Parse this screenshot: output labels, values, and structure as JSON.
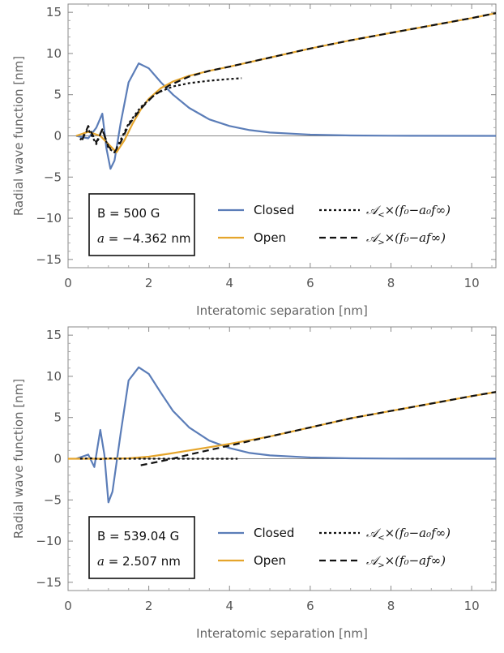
{
  "chart_data": [
    {
      "type": "line",
      "xlabel": "Interatomic separation [nm]",
      "ylabel": "Radial wave function [nm]",
      "xlim": [
        0,
        10.6
      ],
      "ylim": [
        -16,
        16
      ],
      "xticks": [
        0,
        2,
        4,
        6,
        8,
        10
      ],
      "yticks": [
        -15,
        -10,
        -5,
        0,
        5,
        10,
        15
      ],
      "x_tick_labels": [
        "0",
        "2",
        "4",
        "6",
        "8",
        "10"
      ],
      "y_tick_labels": [
        "−15",
        "−10",
        "−5",
        "0",
        "5",
        "10",
        "15"
      ],
      "annotation": {
        "line1": "B = 500 G",
        "a_symbol": "a",
        "a_value": " = −4.362 nm"
      },
      "legend": {
        "closed": "Closed",
        "open": "Open",
        "dotted_label": {
          "symbol": "𝒜",
          "sub": "<",
          "expr": "×(f₀−a₀f∞)"
        },
        "dashed_label": {
          "symbol": "𝒜",
          "sub": ">",
          "expr": "×(f₀−af∞)"
        }
      },
      "series": [
        {
          "name": "Closed",
          "color": "#5b7db8",
          "x": [
            0.2,
            0.5,
            0.7,
            0.85,
            0.95,
            1.05,
            1.15,
            1.3,
            1.5,
            1.75,
            2.0,
            2.3,
            2.6,
            3.0,
            3.5,
            4.0,
            4.5,
            5.0,
            6.0,
            7.0,
            8.0,
            10.6
          ],
          "y": [
            0.0,
            -0.3,
            1.0,
            2.7,
            -1.5,
            -4.0,
            -3.0,
            1.5,
            6.5,
            8.8,
            8.2,
            6.5,
            5.0,
            3.4,
            2.0,
            1.2,
            0.7,
            0.4,
            0.15,
            0.05,
            0.02,
            0.0
          ]
        },
        {
          "name": "Open",
          "color": "#e5a52c",
          "x": [
            0.2,
            0.5,
            0.8,
            1.0,
            1.2,
            1.4,
            1.6,
            1.8,
            2.0,
            2.3,
            2.6,
            3.0,
            3.5,
            4.0,
            5.0,
            6.0,
            7.0,
            8.0,
            9.0,
            10.0,
            10.6
          ],
          "y": [
            0.0,
            0.5,
            0.0,
            -1.0,
            -2.0,
            -0.5,
            1.5,
            3.2,
            4.5,
            5.8,
            6.6,
            7.3,
            7.9,
            8.4,
            9.5,
            10.6,
            11.6,
            12.5,
            13.4,
            14.3,
            14.9
          ]
        },
        {
          "name": "Dotted asymptote",
          "color": "#111111",
          "x": [
            0.3,
            0.5,
            0.7,
            0.85,
            1.0,
            1.15,
            1.3,
            1.5,
            1.8,
            2.2,
            2.6,
            3.0,
            3.5,
            4.0,
            4.3
          ],
          "y": [
            -0.5,
            0.8,
            -1.0,
            0.8,
            -1.5,
            -2.0,
            -0.5,
            1.5,
            3.5,
            5.2,
            6.0,
            6.4,
            6.7,
            6.9,
            7.0
          ]
        },
        {
          "name": "Dashed asymptote",
          "color": "#111111",
          "x": [
            0.35,
            0.5,
            0.7,
            0.85,
            1.0,
            1.15,
            1.3,
            1.5,
            1.8,
            2.1,
            2.5,
            3.0,
            3.5,
            4.0,
            5.0,
            6.0,
            7.0,
            8.0,
            9.0,
            10.0,
            10.6
          ],
          "y": [
            -0.5,
            1.2,
            -0.8,
            0.8,
            -1.3,
            -2.0,
            -0.8,
            1.3,
            3.3,
            4.8,
            6.1,
            7.2,
            7.9,
            8.4,
            9.5,
            10.6,
            11.6,
            12.5,
            13.4,
            14.3,
            14.9
          ]
        }
      ]
    },
    {
      "type": "line",
      "xlabel": "Interatomic separation [nm]",
      "ylabel": "Radial wave function [nm]",
      "xlim": [
        0,
        10.6
      ],
      "ylim": [
        -16,
        16
      ],
      "xticks": [
        0,
        2,
        4,
        6,
        8,
        10
      ],
      "yticks": [
        -15,
        -10,
        -5,
        0,
        5,
        10,
        15
      ],
      "x_tick_labels": [
        "0",
        "2",
        "4",
        "6",
        "8",
        "10"
      ],
      "y_tick_labels": [
        "−15",
        "−10",
        "−5",
        "0",
        "5",
        "10",
        "15"
      ],
      "annotation": {
        "line1": "B = 539.04 G",
        "a_symbol": "a",
        "a_value": " = 2.507 nm"
      },
      "legend": {
        "closed": "Closed",
        "open": "Open",
        "dotted_label": {
          "symbol": "𝒜",
          "sub": "<",
          "expr": "×(f₀−a₀f∞)"
        },
        "dashed_label": {
          "symbol": "𝒜",
          "sub": ">",
          "expr": "×(f₀−af∞)"
        }
      },
      "series": [
        {
          "name": "Closed",
          "color": "#5b7db8",
          "x": [
            0.2,
            0.5,
            0.65,
            0.8,
            0.9,
            1.0,
            1.1,
            1.3,
            1.5,
            1.75,
            2.0,
            2.3,
            2.6,
            3.0,
            3.5,
            4.0,
            4.5,
            5.0,
            6.0,
            7.0,
            8.0,
            10.6
          ],
          "y": [
            0.0,
            0.5,
            -1.0,
            3.5,
            0.5,
            -5.3,
            -4.0,
            3.0,
            9.5,
            11.1,
            10.3,
            8.0,
            5.8,
            3.8,
            2.2,
            1.3,
            0.7,
            0.4,
            0.15,
            0.05,
            0.02,
            0.0
          ]
        },
        {
          "name": "Open",
          "color": "#e5a52c",
          "x": [
            0.0,
            1.0,
            1.5,
            2.0,
            2.5,
            3.0,
            3.5,
            4.0,
            5.0,
            6.0,
            7.0,
            8.0,
            9.0,
            10.0,
            10.6
          ],
          "y": [
            0.0,
            0.0,
            0.05,
            0.25,
            0.6,
            1.0,
            1.4,
            1.8,
            2.7,
            3.8,
            4.9,
            5.8,
            6.7,
            7.6,
            8.1
          ]
        },
        {
          "name": "Dotted asymptote",
          "color": "#111111",
          "x": [
            0.3,
            0.6,
            0.8,
            1.0,
            1.2,
            1.5,
            2.0,
            2.5,
            3.0,
            3.5,
            4.2
          ],
          "y": [
            0.0,
            0.05,
            -0.05,
            0.05,
            0.0,
            0.0,
            0.0,
            0.0,
            0.0,
            0.0,
            0.0
          ]
        },
        {
          "name": "Dashed asymptote",
          "color": "#111111",
          "x": [
            1.8,
            2.5,
            3.0,
            4.0,
            5.0,
            6.0,
            7.0,
            8.0,
            9.0,
            10.0,
            10.6
          ],
          "y": [
            -0.8,
            -0.1,
            0.5,
            1.6,
            2.7,
            3.8,
            4.9,
            5.8,
            6.7,
            7.6,
            8.1
          ]
        }
      ]
    }
  ]
}
